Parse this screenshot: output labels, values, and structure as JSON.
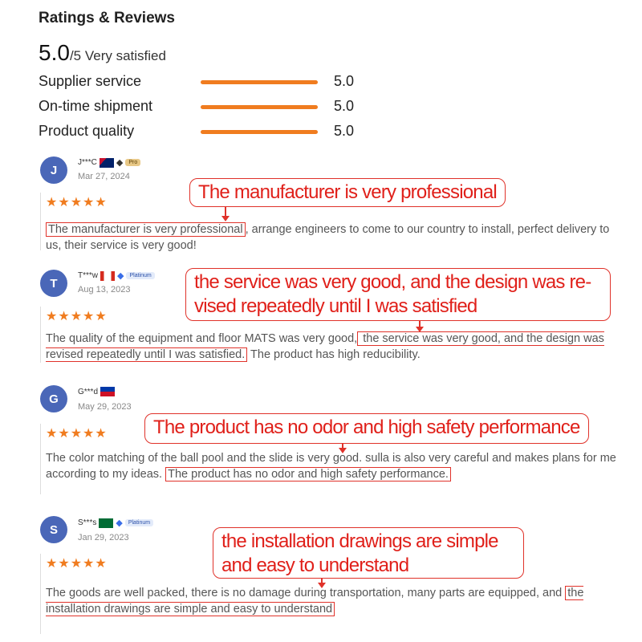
{
  "header": {
    "title": "Ratings & Reviews",
    "score": "5.0",
    "score_suffix": "/5 Very satisfied"
  },
  "ratings": [
    {
      "label": "Supplier service",
      "value": "5.0",
      "fill": 1.0
    },
    {
      "label": "On-time shipment",
      "value": "5.0",
      "fill": 1.0
    },
    {
      "label": "Product quality",
      "value": "5.0",
      "fill": 1.0
    }
  ],
  "colors": {
    "accent": "#f07c1f",
    "highlight": "#e0322a",
    "avatar": "#4a67b8"
  },
  "reviews": [
    {
      "initial": "J",
      "name": "J***C",
      "flag": "Australia",
      "badge": "Pro",
      "date": "Mar 27, 2024",
      "stars": "★★★★★",
      "rating": 5,
      "callout": "The manufacturer is very professional",
      "pre": "",
      "hl": "The manufacturer is very professional",
      "post": ", arrange engineers to come to our country to install, perfect delivery to us, their service is very good!"
    },
    {
      "initial": "T",
      "name": "T***w",
      "flag": "Canada",
      "badge": "Platinum",
      "date": "Aug 13, 2023",
      "stars": "★★★★★",
      "rating": 5,
      "callout": "the service was very good, and the design was re-vised repeatedly until I was satisfied",
      "pre": "The quality of the equipment and floor MATS was very good,",
      "hl": " the service was very good, and the design was revised repeatedly until I was satisfied.",
      "post": " The product has high reducibility."
    },
    {
      "initial": "G",
      "name": "G***d",
      "flag": "Philippines",
      "badge": "",
      "date": "May 29, 2023",
      "stars": "★★★★★",
      "rating": 5,
      "callout": "The product has no odor and high safety performance",
      "pre": "The color matching of the ball pool and the slide is very good.  sulla is also very careful and makes plans for me according to my ideas. ",
      "hl": "The product has no odor and high safety performance.",
      "post": ""
    },
    {
      "initial": "S",
      "name": "S***s",
      "flag": "Saudi Arabia",
      "badge": "Platinum",
      "date": "Jan 29, 2023",
      "stars": "★★★★★",
      "rating": 5,
      "callout": "the installation drawings are simple and easy to understand",
      "pre": "The goods are well packed, there is no damage during transportation, many parts are equipped, and ",
      "hl": "the installation drawings are simple and easy to understand",
      "post": ""
    }
  ]
}
